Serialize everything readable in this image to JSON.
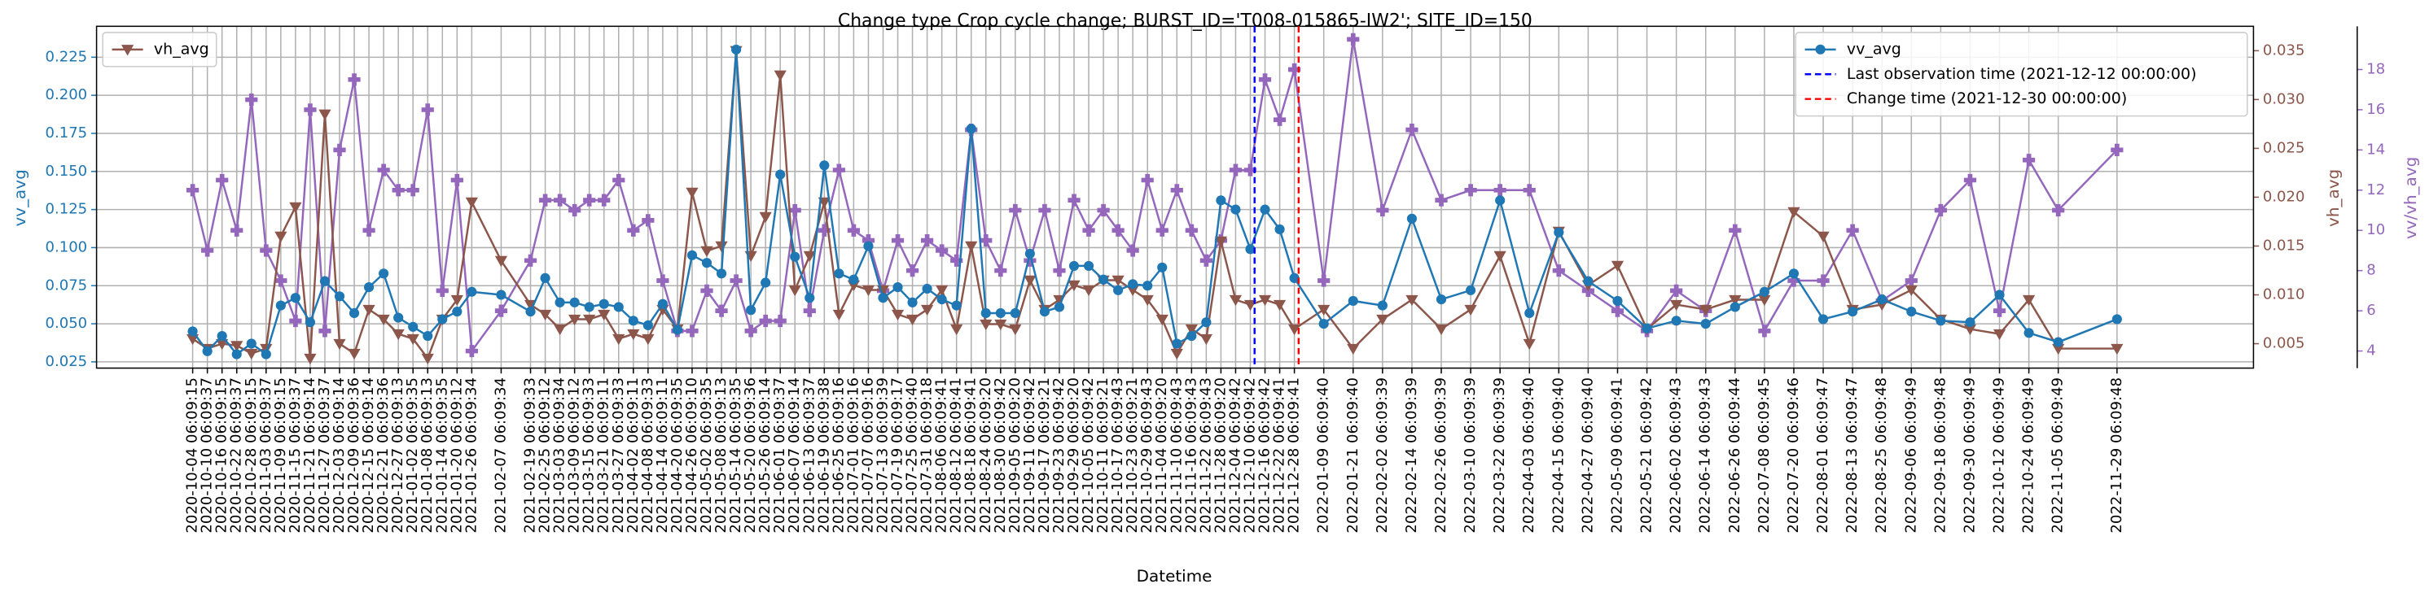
{
  "chart_data": {
    "type": "line",
    "title": "Change type Crop cycle change; BURST_ID='T008-015865-IW2'; SITE_ID=150",
    "xlabel": "Datetime",
    "x": [
      "2020-10-04 06:09:15",
      "2020-10-10 06:09:37",
      "2020-10-16 06:09:15",
      "2020-10-22 06:09:37",
      "2020-10-28 06:09:15",
      "2020-11-03 06:09:37",
      "2020-11-09 06:09:15",
      "2020-11-15 06:09:37",
      "2020-11-21 06:09:14",
      "2020-11-27 06:09:37",
      "2020-12-03 06:09:14",
      "2020-12-09 06:09:36",
      "2020-12-15 06:09:14",
      "2020-12-21 06:09:36",
      "2020-12-27 06:09:13",
      "2021-01-02 06:09:35",
      "2021-01-08 06:09:13",
      "2021-01-14 06:09:35",
      "2021-01-20 06:09:12",
      "2021-01-26 06:09:34",
      "2021-02-07 06:09:34",
      "2021-02-19 06:09:33",
      "2021-02-25 06:09:12",
      "2021-03-03 06:09:34",
      "2021-03-09 06:09:12",
      "2021-03-15 06:09:33",
      "2021-03-21 06:09:11",
      "2021-03-27 06:09:33",
      "2021-04-02 06:09:11",
      "2021-04-08 06:09:33",
      "2021-04-14 06:09:11",
      "2021-04-20 06:09:35",
      "2021-04-26 06:09:10",
      "2021-05-02 06:09:35",
      "2021-05-08 06:09:13",
      "2021-05-14 06:09:35",
      "2021-05-20 06:09:36",
      "2021-05-26 06:09:14",
      "2021-06-01 06:09:37",
      "2021-06-07 06:09:14",
      "2021-06-13 06:09:37",
      "2021-06-19 06:09:38",
      "2021-06-25 06:09:16",
      "2021-07-01 06:09:16",
      "2021-07-07 06:09:16",
      "2021-07-13 06:09:39",
      "2021-07-19 06:09:17",
      "2021-07-25 06:09:40",
      "2021-07-31 06:09:18",
      "2021-08-06 06:09:41",
      "2021-08-12 06:09:41",
      "2021-08-18 06:09:41",
      "2021-08-24 06:09:20",
      "2021-08-30 06:09:42",
      "2021-09-05 06:09:20",
      "2021-09-11 06:09:42",
      "2021-09-17 06:09:21",
      "2021-09-23 06:09:42",
      "2021-09-29 06:09:20",
      "2021-10-05 06:09:42",
      "2021-10-11 06:09:21",
      "2021-10-17 06:09:43",
      "2021-10-23 06:09:21",
      "2021-10-29 06:09:43",
      "2021-11-04 06:09:20",
      "2021-11-10 06:09:43",
      "2021-11-16 06:09:43",
      "2021-11-22 06:09:43",
      "2021-11-28 06:09:20",
      "2021-12-04 06:09:42",
      "2021-12-10 06:09:42",
      "2021-12-16 06:09:42",
      "2021-12-22 06:09:41",
      "2021-12-28 06:09:41",
      "2022-01-09 06:09:40",
      "2022-01-21 06:09:40",
      "2022-02-02 06:09:39",
      "2022-02-14 06:09:39",
      "2022-02-26 06:09:39",
      "2022-03-10 06:09:39",
      "2022-03-22 06:09:39",
      "2022-04-03 06:09:40",
      "2022-04-15 06:09:40",
      "2022-04-27 06:09:40",
      "2022-05-09 06:09:41",
      "2022-05-21 06:09:42",
      "2022-06-02 06:09:43",
      "2022-06-14 06:09:43",
      "2022-06-26 06:09:44",
      "2022-07-08 06:09:45",
      "2022-07-20 06:09:46",
      "2022-08-01 06:09:47",
      "2022-08-13 06:09:47",
      "2022-08-25 06:09:48",
      "2022-09-06 06:09:49",
      "2022-09-18 06:09:48",
      "2022-09-30 06:09:49",
      "2022-10-12 06:09:49",
      "2022-10-24 06:09:49",
      "2022-11-05 06:09:49",
      "2022-11-29 06:09:48"
    ],
    "xlim": [
      "2020-08-26 00:00:00",
      "2023-01-24 00:00:00"
    ],
    "series": [
      {
        "name": "vv_avg",
        "color": "#1f77b4",
        "marker": "circle",
        "axis": "y",
        "legend": "upper right",
        "values": [
          0.045,
          0.032,
          0.042,
          0.03,
          0.037,
          0.03,
          0.062,
          0.067,
          0.051,
          0.078,
          0.068,
          0.057,
          0.074,
          0.083,
          0.054,
          0.048,
          0.042,
          0.053,
          0.058,
          0.071,
          0.069,
          0.058,
          0.08,
          0.064,
          0.064,
          0.061,
          0.063,
          0.061,
          0.052,
          0.049,
          0.063,
          0.046,
          0.095,
          0.09,
          0.083,
          0.23,
          0.059,
          0.077,
          0.148,
          0.094,
          0.067,
          0.154,
          0.083,
          0.079,
          0.101,
          0.067,
          0.074,
          0.064,
          0.073,
          0.066,
          0.062,
          0.178,
          0.057,
          0.057,
          0.057,
          0.096,
          0.058,
          0.061,
          0.088,
          0.088,
          0.079,
          0.072,
          0.076,
          0.075,
          0.087,
          0.037,
          0.042,
          0.051,
          0.131,
          0.125,
          0.099,
          0.125,
          0.112,
          0.08,
          0.05,
          0.065,
          0.062,
          0.119,
          0.066,
          0.072,
          0.131,
          0.057,
          0.11,
          0.078,
          0.065,
          0.047,
          0.052,
          0.05,
          0.061,
          0.071,
          0.083,
          0.053,
          0.058,
          0.066,
          0.058,
          0.052,
          0.051,
          0.069,
          0.044,
          0.038,
          0.053
        ]
      },
      {
        "name": "vh_avg",
        "color": "#8c564b",
        "marker": "triangle-down",
        "axis": "y2",
        "legend": "upper left",
        "values": [
          0.0055,
          0.0045,
          0.005,
          0.0048,
          0.004,
          0.0045,
          0.016,
          0.019,
          0.0035,
          0.0285,
          0.005,
          0.004,
          0.0085,
          0.0075,
          0.006,
          0.0055,
          0.0035,
          0.0075,
          0.0095,
          0.0195,
          0.0135,
          0.009,
          0.008,
          0.0065,
          0.0075,
          0.0075,
          0.008,
          0.0055,
          0.006,
          0.0055,
          0.0085,
          0.0065,
          0.0205,
          0.0145,
          0.015,
          0.035,
          0.014,
          0.018,
          0.0325,
          0.0105,
          0.014,
          0.0195,
          0.008,
          0.011,
          0.0105,
          0.0105,
          0.008,
          0.0075,
          0.0085,
          0.0105,
          0.0065,
          0.015,
          0.007,
          0.007,
          0.0065,
          0.0115,
          0.0085,
          0.0095,
          0.011,
          0.0105,
          0.0115,
          0.0115,
          0.0105,
          0.0095,
          0.0075,
          0.004,
          0.0065,
          0.0055,
          0.0155,
          0.0095,
          0.009,
          0.0095,
          0.009,
          0.0065,
          0.0085,
          0.0045,
          0.0075,
          0.0095,
          0.0065,
          0.0085,
          0.014,
          0.005,
          0.0165,
          0.011,
          0.013,
          0.0065,
          0.009,
          0.0085,
          0.0095,
          0.0095,
          0.0185,
          0.016,
          0.0085,
          0.009,
          0.0105,
          0.0075,
          0.0065,
          0.006,
          0.0095,
          0.0045,
          0.0045
        ]
      },
      {
        "name": "vv/vh_avg",
        "color": "#9467bd",
        "marker": "plus",
        "axis": "y3",
        "values": [
          12,
          9,
          12.5,
          10,
          16.5,
          9,
          7.5,
          5.5,
          16,
          5,
          14,
          17.5,
          10,
          13,
          12,
          12,
          16,
          7,
          12.5,
          4,
          6,
          8.5,
          11.5,
          11.5,
          11,
          11.5,
          11.5,
          12.5,
          10,
          10.5,
          7.5,
          5,
          5,
          7,
          6,
          7.5,
          5,
          5.5,
          5.5,
          11,
          6,
          10,
          13,
          10,
          9.5,
          7,
          9.5,
          8,
          9.5,
          9,
          8.5,
          15,
          9.5,
          8,
          11,
          8.5,
          11,
          8,
          11.5,
          10,
          11,
          10,
          9,
          12.5,
          10,
          12,
          10,
          8.5,
          9.5,
          13,
          13,
          17.5,
          15.5,
          18,
          7.5,
          19.5,
          11,
          15,
          11.5,
          12,
          12,
          12,
          8,
          7,
          6,
          5,
          7,
          6,
          10,
          5,
          7.5,
          7.5,
          10,
          6.5,
          7.5,
          11,
          12.5,
          6,
          13.5,
          11,
          14
        ]
      }
    ],
    "ylim": [
      0.0209,
      0.2453
    ],
    "yticks": [
      0.025,
      {
        "value": 0.05,
        "label": "0.050"
      },
      0.075,
      {
        "value": 0.1,
        "label": "0.100"
      },
      0.125,
      {
        "value": 0.15,
        "label": "0.150"
      },
      0.175,
      {
        "value": 0.2,
        "label": "0.200"
      },
      0.225
    ],
    "y2lim": [
      0.0025,
      0.0375
    ],
    "y2ticks": [
      0.005,
      {
        "value": 0.01,
        "label": "0.010"
      },
      0.015,
      {
        "value": 0.02,
        "label": "0.020"
      },
      0.025,
      {
        "value": 0.03,
        "label": "0.030"
      },
      0.035
    ],
    "y3lim": [
      3.15,
      20.15
    ],
    "y3ticks": [
      4,
      6,
      8,
      10,
      12,
      14,
      16,
      18
    ],
    "vlines": [
      {
        "x": "2021-12-12 00:00:00",
        "color": "#0000ff",
        "label": "Last observation time (2021-12-12 00:00:00)",
        "legend": "upper right"
      },
      {
        "x": "2021-12-30 00:00:00",
        "color": "#ff0000",
        "label": "Change time (2021-12-30 00:00:00)",
        "legend": "upper right"
      }
    ],
    "grid": true
  }
}
